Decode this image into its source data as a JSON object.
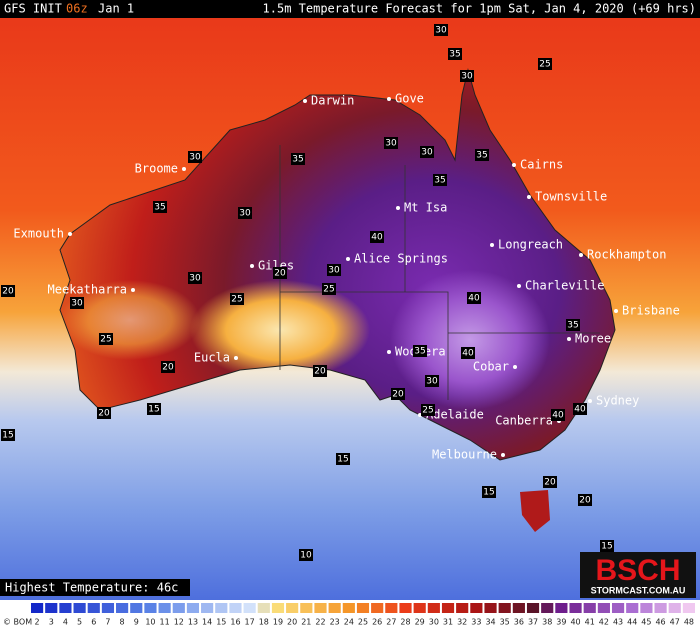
{
  "header": {
    "model": "GFS INIT",
    "run": "06z",
    "init_date": "Jan 1",
    "title": "1.5m Temperature Forecast for 1pm Sat, Jan 4, 2020 (+69 hrs)"
  },
  "cities": [
    "Darwin",
    "Gove",
    "Cairns",
    "Broome",
    "Townsville",
    "Mt Isa",
    "Exmouth",
    "Longreach",
    "Rockhampton",
    "Alice Springs",
    "Giles",
    "Charleville",
    "Meekatharra",
    "Brisbane",
    "Moree",
    "Woomera",
    "Eucla",
    "Cobar",
    "Sydney",
    "Adelaide",
    "Canberra",
    "Melbourne"
  ],
  "contour_labels": [
    30,
    35,
    30,
    25,
    30,
    30,
    35,
    35,
    30,
    35,
    35,
    30,
    40,
    20,
    30,
    30,
    25,
    40,
    20,
    30,
    25,
    25,
    35,
    40,
    35,
    20,
    20,
    30,
    20,
    25,
    20,
    15,
    40,
    40,
    15,
    15,
    15,
    20,
    20,
    15,
    10
  ],
  "highest": "Highest Temperature: 46c",
  "brand": {
    "logo": "BSCH",
    "url": "STORMCAST.COM.AU"
  },
  "scale": {
    "source": "© BOM",
    "values": [
      2,
      3,
      4,
      5,
      6,
      7,
      8,
      9,
      10,
      11,
      12,
      13,
      14,
      15,
      16,
      17,
      18,
      19,
      20,
      21,
      22,
      23,
      24,
      25,
      26,
      27,
      28,
      29,
      30,
      31,
      32,
      33,
      34,
      35,
      36,
      37,
      38,
      39,
      40,
      41,
      42,
      43,
      44,
      45,
      46,
      47,
      48
    ]
  }
}
